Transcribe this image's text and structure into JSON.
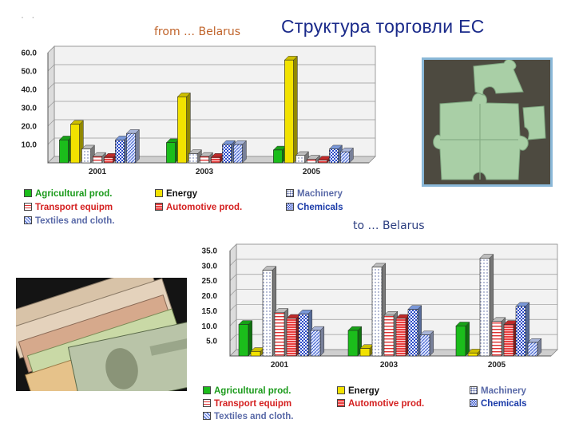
{
  "page": {
    "dots": "· ·",
    "main_title": "Структура торговли ЕС"
  },
  "legend_items": [
    {
      "label": "Agricultural prod.",
      "color": "#1bbd1b",
      "text_color": "#1a9a1a",
      "pattern": "solid"
    },
    {
      "label": "Energy",
      "color": "#f2e200",
      "text_color": "#111111",
      "pattern": "solid"
    },
    {
      "label": "Machinery",
      "color": "#ffffff",
      "text_color": "#5a6aa8",
      "pattern": "dots"
    },
    {
      "label": "Transport equipm",
      "color": "#ffffff",
      "text_color": "#d42020",
      "pattern": "hlines-red"
    },
    {
      "label": "Automotive prod.",
      "color": "#e03030",
      "text_color": "#d42020",
      "pattern": "stripes-red"
    },
    {
      "label": "Chemicals",
      "color": "#8fb3ff",
      "text_color": "#1a3aa8",
      "pattern": "checker-blue"
    },
    {
      "label": "Textiles and cloth.",
      "color": "#c8d6ff",
      "text_color": "#5a6aa8",
      "pattern": "diag-blue"
    }
  ],
  "chart_data": [
    {
      "type": "bar",
      "title": "from … Belarus",
      "categories": [
        "2001",
        "2003",
        "2005"
      ],
      "ylim": [
        0,
        60
      ],
      "yticks": [
        "10.0",
        "20.0",
        "30.0",
        "40.0",
        "50.0",
        "60.0"
      ],
      "grid": true,
      "legend_position": "bottom",
      "series": [
        {
          "name": "Agricultural prod.",
          "values": [
            12.5,
            11,
            7
          ]
        },
        {
          "name": "Energy",
          "values": [
            21,
            36,
            56
          ]
        },
        {
          "name": "Machinery",
          "values": [
            7.5,
            5,
            4
          ]
        },
        {
          "name": "Transport equipm",
          "values": [
            3.5,
            3.5,
            2
          ]
        },
        {
          "name": "Automotive prod.",
          "values": [
            3,
            3,
            1.5
          ]
        },
        {
          "name": "Chemicals",
          "values": [
            12.5,
            10,
            7.5
          ]
        },
        {
          "name": "Textiles and cloth.",
          "values": [
            16,
            10,
            6
          ]
        }
      ]
    },
    {
      "type": "bar",
      "title": "to … Belarus",
      "categories": [
        "2001",
        "2003",
        "2005"
      ],
      "ylim": [
        0,
        35
      ],
      "yticks": [
        "5.0",
        "10.0",
        "15.0",
        "20.0",
        "25.0",
        "30.0",
        "35.0"
      ],
      "grid": true,
      "legend_position": "bottom",
      "series": [
        {
          "name": "Agricultural prod.",
          "values": [
            10.5,
            8.5,
            10
          ]
        },
        {
          "name": "Energy",
          "values": [
            1.5,
            2.5,
            1
          ]
        },
        {
          "name": "Machinery",
          "values": [
            28.5,
            29.5,
            32.5
          ]
        },
        {
          "name": "Transport equipm",
          "values": [
            14.5,
            13.5,
            11.5
          ]
        },
        {
          "name": "Automotive prod.",
          "values": [
            12.5,
            12.5,
            10.5
          ]
        },
        {
          "name": "Chemicals",
          "values": [
            14,
            15.5,
            16.5
          ]
        },
        {
          "name": "Textiles and cloth.",
          "values": [
            8.5,
            7,
            4.5
          ]
        }
      ]
    }
  ]
}
